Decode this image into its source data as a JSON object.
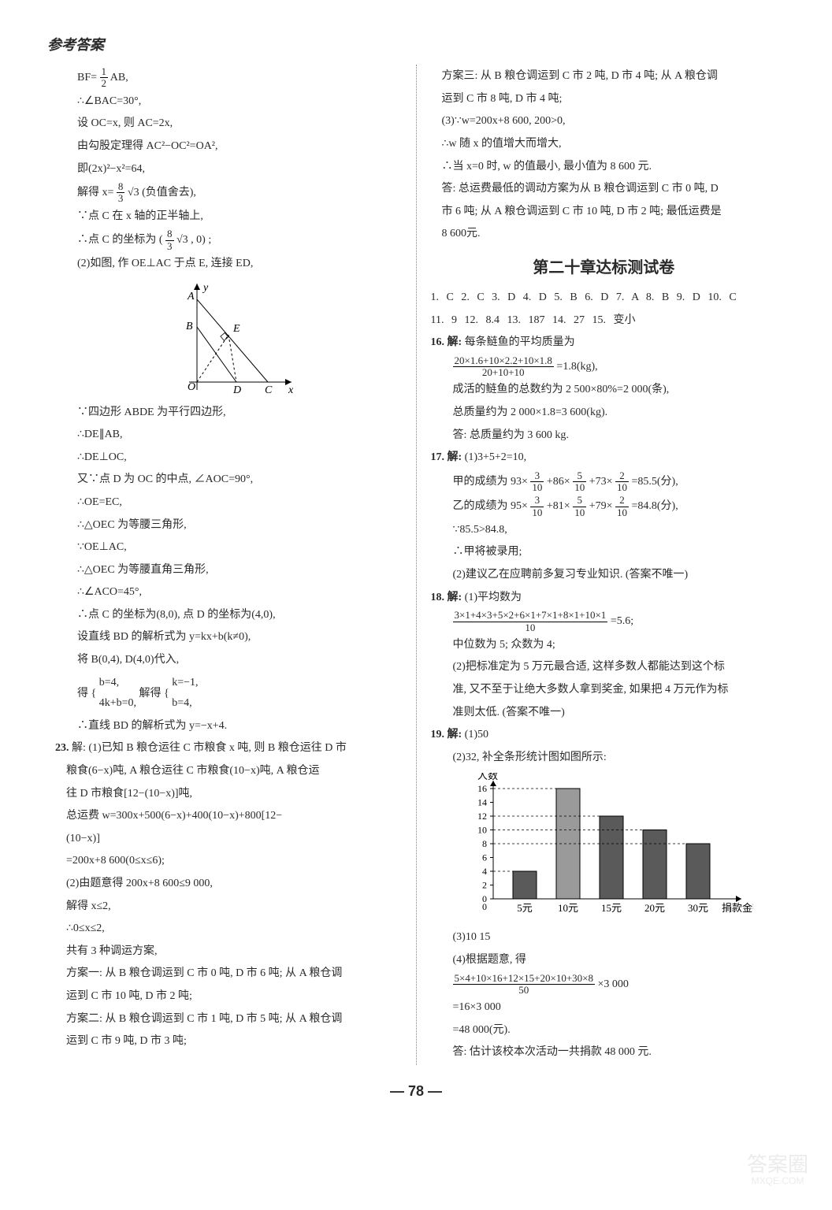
{
  "header": "参考答案",
  "page_number": "— 78 —",
  "watermark": {
    "line1": "答案圈",
    "line2": "MXQE.COM"
  },
  "left": {
    "l1": "BF=",
    "l1_frac": {
      "n": "1",
      "d": "2"
    },
    "l1b": "AB,",
    "l2": "∴∠BAC=30°,",
    "l3": "设 OC=x, 则 AC=2x,",
    "l4": "由勾股定理得 AC²−OC²=OA²,",
    "l5": "即(2x)²−x²=64,",
    "l6a": "解得 x=",
    "l6_frac": {
      "n": "8",
      "d": "3"
    },
    "l6b": "√3 (负值舍去),",
    "l7": "∵点 C 在 x 轴的正半轴上,",
    "l8a": "∴点 C 的坐标为 (",
    "l8_frac": {
      "n": "8",
      "d": "3"
    },
    "l8b": "√3 , 0) ;",
    "l9": "(2)如图, 作 OE⊥AC 于点 E, 连接 ED,",
    "fig1": {
      "O": "O",
      "A": "A",
      "B": "B",
      "C": "C",
      "D": "D",
      "E": "E",
      "x": "x",
      "y": "y"
    },
    "l10": "∵四边形 ABDE 为平行四边形,",
    "l11": "∴DE∥AB,",
    "l12": "∴DE⊥OC,",
    "l13": "又∵点 D 为 OC 的中点, ∠AOC=90°,",
    "l14": "∴OE=EC,",
    "l15": "∴△OEC 为等腰三角形,",
    "l16": "∵OE⊥AC,",
    "l17": "∴△OEC 为等腰直角三角形,",
    "l18": "∴∠ACO=45°,",
    "l19": "∴点 C 的坐标为(8,0), 点 D 的坐标为(4,0),",
    "l20": "设直线 BD 的解析式为 y=kx+b(k≠0),",
    "l21": "将 B(0,4), D(4,0)代入,",
    "l22a": "得 {",
    "l22b": "b=4,",
    "l22c": "4k+b=0,",
    "l22d": "解得 {",
    "l22e": "k=−1,",
    "l22f": "b=4,",
    "l23": "∴直线 BD 的解析式为 y=−x+4.",
    "q23": "23.",
    "l24": "解: (1)已知 B 粮仓运往 C 市粮食 x 吨, 则 B 粮仓运往 D 市",
    "l25": "粮食(6−x)吨, A 粮仓运往 C 市粮食(10−x)吨, A 粮仓运",
    "l26": "往 D 市粮食[12−(10−x)]吨,",
    "l27": "总运费 w=300x+500(6−x)+400(10−x)+800[12−",
    "l28": "(10−x)]",
    "l29": "=200x+8 600(0≤x≤6);",
    "l30": "(2)由题意得 200x+8 600≤9 000,",
    "l31": "解得 x≤2,",
    "l32": "∴0≤x≤2,",
    "l33": "共有 3 种调运方案,",
    "l34": "方案一: 从 B 粮仓调运到 C 市 0 吨, D 市 6 吨; 从 A 粮仓调",
    "l35": "运到 C 市 10 吨, D 市 2 吨;",
    "l36": "方案二: 从 B 粮仓调运到 C 市 1 吨, D 市 5 吨; 从 A 粮仓调",
    "l37": "运到 C 市 9 吨, D 市 3 吨;"
  },
  "right": {
    "r1": "方案三: 从 B 粮仓调运到 C 市 2 吨, D 市 4 吨; 从 A 粮仓调",
    "r2": "运到 C 市 8 吨, D 市 4 吨;",
    "r3": "(3)∵w=200x+8 600, 200>0,",
    "r4": "∴w 随 x 的值增大而增大,",
    "r5": "∴当 x=0 时, w 的值最小, 最小值为 8 600 元.",
    "r6": "答: 总运费最低的调动方案为从 B 粮仓调运到 C 市 0 吨, D",
    "r7": "市 6 吨; 从 A 粮仓调运到 C 市 10 吨, D 市 2 吨; 最低运费是",
    "r8": "8 600元.",
    "chapter": "第二十章达标测试卷",
    "ans1": "1. C   2. C   3. D   4. D   5. B   6. D   7. A   8. B   9. D   10. C",
    "ans2": "11. 9   12. 8.4   13. 187   14. 27   15. 变小",
    "q16": "16. 解:",
    "r16a": "每条鲢鱼的平均质量为",
    "r16_frac": {
      "n": "20×1.6+10×2.2+10×1.8",
      "d": "20+10+10"
    },
    "r16b": "=1.8(kg),",
    "r17": "成活的鲢鱼的总数约为 2 500×80%=2 000(条),",
    "r18": "总质量约为 2 000×1.8=3 600(kg).",
    "r19": "答: 总质量约为 3 600 kg.",
    "q17": "17. 解:",
    "r20": "(1)3+5+2=10,",
    "r21a": "甲的成绩为 93×",
    "r21f1": {
      "n": "3",
      "d": "10"
    },
    "r21b": "+86×",
    "r21f2": {
      "n": "5",
      "d": "10"
    },
    "r21c": "+73×",
    "r21f3": {
      "n": "2",
      "d": "10"
    },
    "r21d": "=85.5(分),",
    "r22a": "乙的成绩为 95×",
    "r22f1": {
      "n": "3",
      "d": "10"
    },
    "r22b": "+81×",
    "r22f2": {
      "n": "5",
      "d": "10"
    },
    "r22c": "+79×",
    "r22f3": {
      "n": "2",
      "d": "10"
    },
    "r22d": "=84.8(分),",
    "r23": "∵85.5>84.8,",
    "r24": "∴甲将被录用;",
    "r25": "(2)建议乙在应聘前多复习专业知识. (答案不唯一)",
    "q18": "18. 解:",
    "r26": "(1)平均数为",
    "r26_frac": {
      "n": "3×1+4×3+5×2+6×1+7×1+8×1+10×1",
      "d": "10"
    },
    "r26b": "=5.6;",
    "r27": "中位数为 5; 众数为 4;",
    "r28": "(2)把标准定为 5 万元最合适, 这样多数人都能达到这个标",
    "r29": "准, 又不至于让绝大多数人拿到奖金, 如果把 4 万元作为标",
    "r30": "准则太低. (答案不唯一)",
    "q19": "19. 解:",
    "r31": "(1)50",
    "r32": "(2)32, 补全条形统计图如图所示:",
    "chart": {
      "ylabel": "人数",
      "ymax": 16,
      "ystep": 2,
      "bars": [
        {
          "x": "5元",
          "v": 4,
          "color": "#5a5a5a"
        },
        {
          "x": "10元",
          "v": 16,
          "color": "#9a9a9a"
        },
        {
          "x": "15元",
          "v": 12,
          "color": "#5a5a5a"
        },
        {
          "x": "20元",
          "v": 10,
          "color": "#5a5a5a"
        },
        {
          "x": "30元",
          "v": 8,
          "color": "#5a5a5a"
        }
      ],
      "xlabel_suffix": "捐款金额"
    },
    "r33": "(3)10   15",
    "r34": "(4)根据题意, 得",
    "r34_frac": {
      "n": "5×4+10×16+12×15+20×10+30×8",
      "d": "50"
    },
    "r34b": "×3 000",
    "r35": "=16×3 000",
    "r36": "=48 000(元).",
    "r37": "答: 估计该校本次活动一共捐款 48 000 元."
  }
}
